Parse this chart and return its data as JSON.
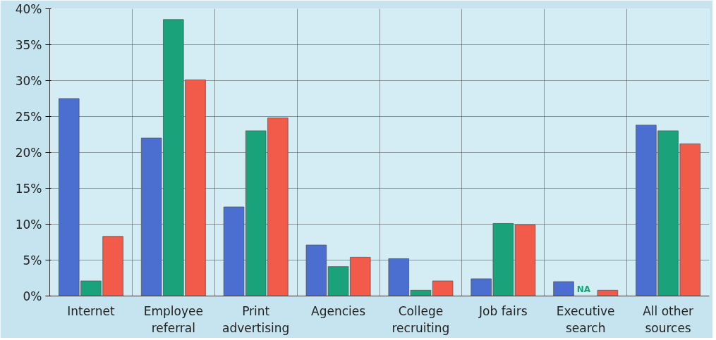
{
  "chart_data": {
    "type": "bar",
    "categories": [
      "Internet",
      "Employee referral",
      "Print advertising",
      "Agencies",
      "College recruiting",
      "Job fairs",
      "Executive search",
      "All other sources"
    ],
    "series": [
      {
        "color": "#4a6fd0",
        "values": [
          27.5,
          22.0,
          12.4,
          7.1,
          5.2,
          2.4,
          2.0,
          23.8
        ]
      },
      {
        "color": "#1aa37a",
        "values": [
          2.1,
          38.5,
          23.0,
          4.1,
          0.8,
          10.1,
          null,
          23.0
        ]
      },
      {
        "color": "#f25a4a",
        "values": [
          8.3,
          30.1,
          24.8,
          5.4,
          2.1,
          9.9,
          0.8,
          21.2
        ]
      }
    ],
    "ylim": [
      0,
      40
    ],
    "yticks": [
      {
        "value": 0,
        "label": "0%"
      },
      {
        "value": 5,
        "label": "5%"
      },
      {
        "value": 10,
        "label": "10%"
      },
      {
        "value": 15,
        "label": "15%"
      },
      {
        "value": 20,
        "label": "20%"
      },
      {
        "value": 25,
        "label": "25%"
      },
      {
        "value": 30,
        "label": "30%"
      },
      {
        "value": 35,
        "label": "35%"
      },
      {
        "value": 40,
        "label": "40%"
      }
    ],
    "annotations": [
      "NA"
    ],
    "grid": true
  }
}
